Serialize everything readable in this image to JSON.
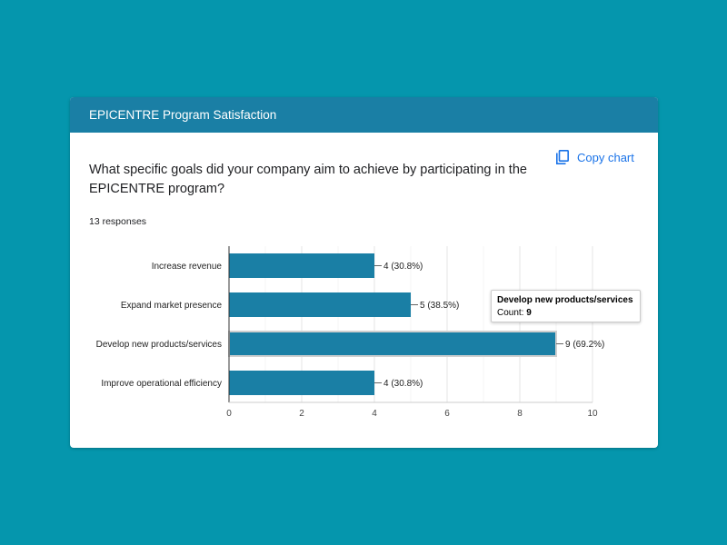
{
  "header": {
    "title": "EPICENTRE Program Satisfaction"
  },
  "toolbar": {
    "copy_label": "Copy chart",
    "copy_icon": "copy-icon"
  },
  "question": {
    "text": "What specific goals did your company aim to achieve by participating in the EPICENTRE program?",
    "responses": "13 responses"
  },
  "tooltip": {
    "title": "Develop new products/services",
    "count_label": "Count:",
    "count_value": "9"
  },
  "colors": {
    "background": "#0596ad",
    "header": "#1a7fa5",
    "bar": "#1a7fa5",
    "link": "#1a73e8"
  },
  "chart_data": {
    "type": "bar",
    "orientation": "horizontal",
    "categories": [
      "Increase revenue",
      "Expand market presence",
      "Develop new products/services",
      "Improve operational efficiency"
    ],
    "values": [
      4,
      5,
      9,
      4
    ],
    "data_labels": [
      "4 (30.8%)",
      "5 (38.5%)",
      "9 (69.2%)",
      "4 (30.8%)"
    ],
    "xlim": [
      0,
      10
    ],
    "xticks": [
      "0",
      "2",
      "4",
      "6",
      "8",
      "10"
    ],
    "grid": true,
    "highlighted": "Develop new products/services"
  }
}
